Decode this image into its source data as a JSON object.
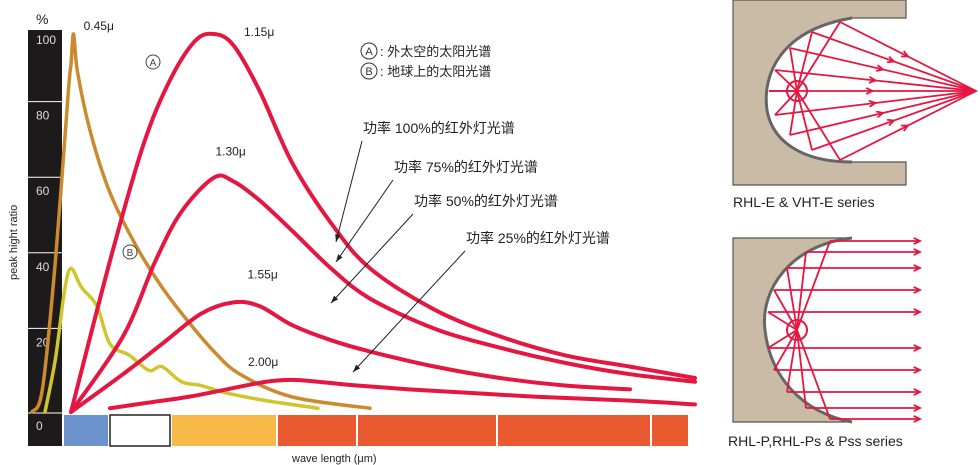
{
  "chart_data": {
    "type": "line",
    "ylabel": "peak hight ratio",
    "yunit": "%",
    "xlabel": "wave length (μm)",
    "yticks": [
      0,
      20,
      40,
      60,
      80,
      100
    ],
    "ylim": [
      0,
      100
    ],
    "series": [
      {
        "id": "A",
        "color": "#cc8a2e",
        "points": [
          [
            -0.6,
            0
          ],
          [
            -0.52,
            6
          ],
          [
            -0.42,
            40
          ],
          [
            -0.32,
            85
          ],
          [
            -0.3,
            92
          ],
          [
            -0.28,
            100
          ],
          [
            -0.25,
            90
          ],
          [
            -0.15,
            74
          ],
          [
            0.0,
            58
          ],
          [
            0.2,
            44
          ],
          [
            0.4,
            33
          ],
          [
            0.6,
            24
          ],
          [
            0.8,
            16
          ],
          [
            1.0,
            10
          ],
          [
            1.4,
            4
          ],
          [
            2.0,
            1
          ]
        ]
      },
      {
        "id": "B",
        "color": "#cfc52e",
        "points": [
          [
            -0.5,
            0
          ],
          [
            -0.42,
            14
          ],
          [
            -0.35,
            32
          ],
          [
            -0.3,
            38
          ],
          [
            -0.22,
            33
          ],
          [
            -0.1,
            28
          ],
          [
            0.0,
            18
          ],
          [
            0.15,
            15
          ],
          [
            0.3,
            11
          ],
          [
            0.4,
            12
          ],
          [
            0.55,
            8
          ],
          [
            0.7,
            7
          ],
          [
            0.9,
            5
          ],
          [
            1.2,
            3
          ],
          [
            1.6,
            1
          ]
        ]
      },
      {
        "id": "P100",
        "name": "功率 100%的红外灯光谱",
        "color": "#e51640",
        "points": [
          [
            -0.3,
            0
          ],
          [
            0.0,
            40
          ],
          [
            0.25,
            70
          ],
          [
            0.45,
            87
          ],
          [
            0.65,
            98
          ],
          [
            0.8,
            100
          ],
          [
            0.95,
            97
          ],
          [
            1.15,
            85
          ],
          [
            1.4,
            66
          ],
          [
            1.7,
            50
          ],
          [
            2.0,
            38
          ],
          [
            2.5,
            27
          ],
          [
            3.0,
            20
          ],
          [
            3.5,
            15
          ],
          [
            4.0,
            12
          ],
          [
            4.5,
            9
          ]
        ]
      },
      {
        "id": "P75",
        "name": "功率 75%的红外灯光谱",
        "color": "#e51640",
        "points": [
          [
            -0.3,
            0
          ],
          [
            0.1,
            20
          ],
          [
            0.35,
            40
          ],
          [
            0.55,
            53
          ],
          [
            0.8,
            62
          ],
          [
            0.95,
            61
          ],
          [
            1.15,
            56
          ],
          [
            1.4,
            48
          ],
          [
            1.7,
            38
          ],
          [
            2.0,
            30
          ],
          [
            2.5,
            22
          ],
          [
            3.0,
            17
          ],
          [
            3.5,
            13
          ],
          [
            4.0,
            10
          ],
          [
            4.5,
            8
          ]
        ]
      },
      {
        "id": "P50",
        "name": "功率 50%的红外灯光谱",
        "color": "#e51640",
        "points": [
          [
            -0.3,
            0
          ],
          [
            0.1,
            10
          ],
          [
            0.4,
            18
          ],
          [
            0.7,
            26
          ],
          [
            0.95,
            29
          ],
          [
            1.15,
            28
          ],
          [
            1.4,
            23
          ],
          [
            1.7,
            19
          ],
          [
            2.0,
            16
          ],
          [
            2.5,
            12
          ],
          [
            3.0,
            9
          ],
          [
            3.5,
            7
          ],
          [
            4.0,
            6
          ]
        ]
      },
      {
        "id": "P25",
        "name": "功率 25%的红外灯光谱",
        "color": "#e51640",
        "points": [
          [
            0.0,
            1
          ],
          [
            0.3,
            2.5
          ],
          [
            0.6,
            4
          ],
          [
            0.9,
            6
          ],
          [
            1.2,
            8
          ],
          [
            1.4,
            8.5
          ],
          [
            1.6,
            8
          ],
          [
            1.9,
            7
          ],
          [
            2.3,
            6
          ],
          [
            2.8,
            5
          ],
          [
            3.3,
            4
          ],
          [
            4.0,
            3
          ],
          [
            4.5,
            2
          ]
        ]
      }
    ],
    "peak_labels": [
      {
        "text": "0.45μ",
        "series": "A",
        "x": -0.28,
        "y": 100
      },
      {
        "text": "1.15μ",
        "series": "P100",
        "x": 0.8,
        "y": 100
      },
      {
        "text": "1.30μ",
        "series": "P75",
        "x": 0.95,
        "y": 62
      },
      {
        "text": "1.55μ",
        "series": "P50",
        "x": 1.15,
        "y": 29
      },
      {
        "text": "2.00μ",
        "series": "P25",
        "x": 1.4,
        "y": 8.5
      }
    ],
    "markers": [
      {
        "text": "A",
        "series": "A"
      },
      {
        "text": "B",
        "series": "B"
      }
    ],
    "legend": [
      {
        "marker": "A",
        "text": ": 外太空的太阳光谱"
      },
      {
        "marker": "B",
        "text": ": 地球上的太阳光谱"
      }
    ],
    "band_colors": [
      "#6d93cf",
      "#ffffff",
      "#f8b84a",
      "#e95a30",
      "#e95a30",
      "#e95a30",
      "#e95a30"
    ]
  },
  "diagrams": [
    {
      "caption": "RHL-E & VHT-E  series"
    },
    {
      "caption": "RHL-P,RHL-Ps & Pss  series"
    }
  ]
}
